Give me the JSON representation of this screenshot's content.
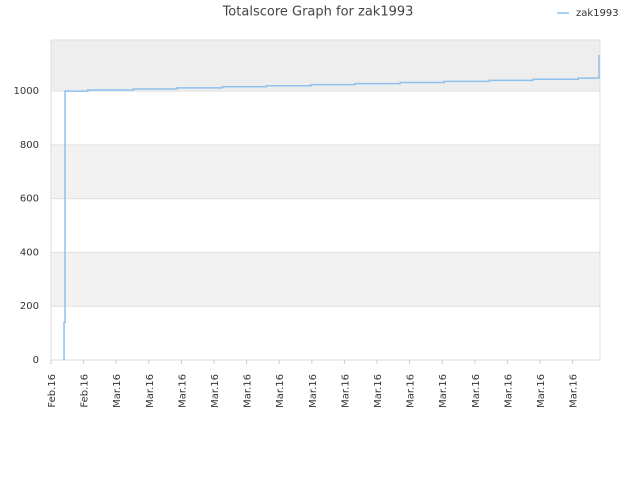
{
  "chart_data": {
    "type": "line",
    "title": "Totalscore Graph for zak1993",
    "xlim": [
      0,
      16.84
    ],
    "xticks": [
      {
        "value": 0,
        "label": "Feb.16"
      },
      {
        "value": 1,
        "label": "Feb.16"
      },
      {
        "value": 2,
        "label": "Mar.16"
      },
      {
        "value": 3,
        "label": "Mar.16"
      },
      {
        "value": 4,
        "label": "Mar.16"
      },
      {
        "value": 5,
        "label": "Mar.16"
      },
      {
        "value": 6,
        "label": "Mar.16"
      },
      {
        "value": 7,
        "label": "Mar.16"
      },
      {
        "value": 8,
        "label": "Mar.16"
      },
      {
        "value": 9,
        "label": "Mar.16"
      },
      {
        "value": 10,
        "label": "Mar.16"
      },
      {
        "value": 11,
        "label": "Mar.16"
      },
      {
        "value": 12,
        "label": "Mar.16"
      },
      {
        "value": 13,
        "label": "Mar.16"
      },
      {
        "value": 14,
        "label": "Mar.16"
      },
      {
        "value": 15,
        "label": "Mar.16"
      },
      {
        "value": 16,
        "label": "Mar.16"
      }
    ],
    "ylim": [
      0,
      1190
    ],
    "yticks": [
      0,
      200,
      400,
      600,
      800,
      1000
    ],
    "grid": true,
    "step": true,
    "legend": "top-right",
    "series": [
      {
        "name": "zak1993",
        "color": "#8ec1ee",
        "x": [
          0.4,
          0.4,
          0.43,
          1.13,
          2.52,
          3.87,
          5.25,
          6.6,
          7.98,
          9.33,
          10.71,
          12.06,
          13.44,
          14.79,
          16.17,
          16.81
        ],
        "values": [
          0,
          140,
          1000,
          1004,
          1008,
          1012,
          1016,
          1020,
          1024,
          1028,
          1032,
          1036,
          1040,
          1044,
          1048,
          1134
        ]
      }
    ]
  }
}
